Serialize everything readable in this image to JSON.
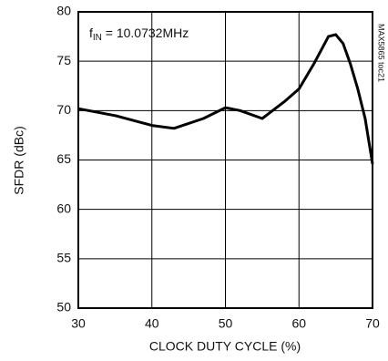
{
  "chart_data": {
    "type": "line",
    "x_label": "CLOCK DUTY CYCLE (%)",
    "y_label": "SFDR (dBc)",
    "annotation": {
      "symbol": "f",
      "subscript": "IN",
      "text": " = 10.0732MHz"
    },
    "side_label": "MAX5865 toc21",
    "x": [
      30,
      35,
      40,
      43,
      47,
      50,
      52,
      55,
      58,
      60,
      62,
      64,
      65,
      66,
      67,
      68,
      69,
      70
    ],
    "series": [
      {
        "color": "#000000",
        "values": [
          70.2,
          69.5,
          68.5,
          68.2,
          69.2,
          70.3,
          70,
          69.2,
          70.9,
          72.2,
          74.7,
          77.5,
          77.7,
          76.8,
          74.7,
          72.2,
          69.2,
          64.6
        ]
      }
    ],
    "xlim": [
      30,
      70
    ],
    "xticks": [
      30,
      40,
      50,
      60,
      70
    ],
    "ylim": [
      50,
      80
    ],
    "yticks": [
      50,
      55,
      60,
      65,
      70,
      75,
      80
    ],
    "grid": true
  }
}
